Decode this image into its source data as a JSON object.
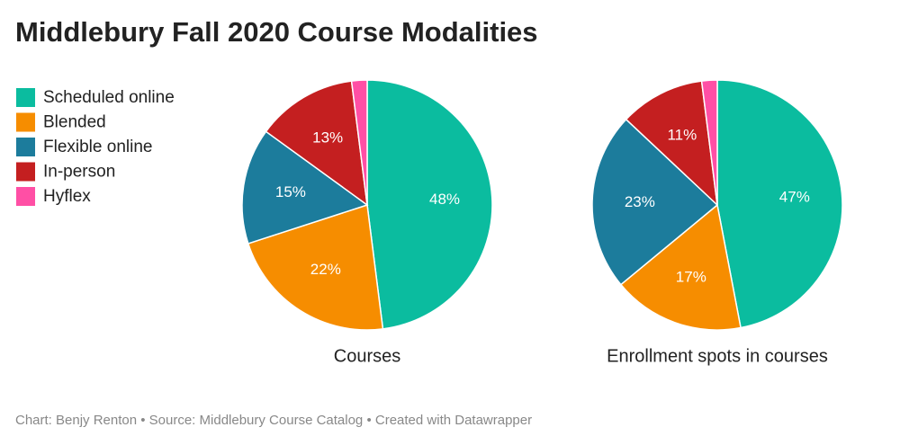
{
  "title": "Middlebury Fall 2020 Course Modalities",
  "source": "Chart: Benjy Renton • Source: Middlebury Course Catalog • Created with Datawrapper",
  "chart_data": [
    {
      "type": "pie",
      "xlabel": "Courses",
      "categories": [
        "Scheduled online",
        "Blended",
        "Flexible online",
        "In-person",
        "Hyflex"
      ],
      "values": [
        48,
        22,
        15,
        13,
        2
      ],
      "value_labels": [
        "48%",
        "22%",
        "15%",
        "13%",
        null
      ],
      "colors": [
        "#0bbc9f",
        "#f68d00",
        "#1c7c9c",
        "#c41f20",
        "#ff4fa5"
      ]
    },
    {
      "type": "pie",
      "xlabel": "Enrollment spots in courses",
      "categories": [
        "Scheduled online",
        "Blended",
        "Flexible online",
        "In-person",
        "Hyflex"
      ],
      "values": [
        47,
        17,
        23,
        11,
        2
      ],
      "value_labels": [
        "47%",
        "17%",
        "23%",
        "11%",
        null
      ],
      "colors": [
        "#0bbc9f",
        "#f68d00",
        "#1c7c9c",
        "#c41f20",
        "#ff4fa5"
      ]
    }
  ]
}
